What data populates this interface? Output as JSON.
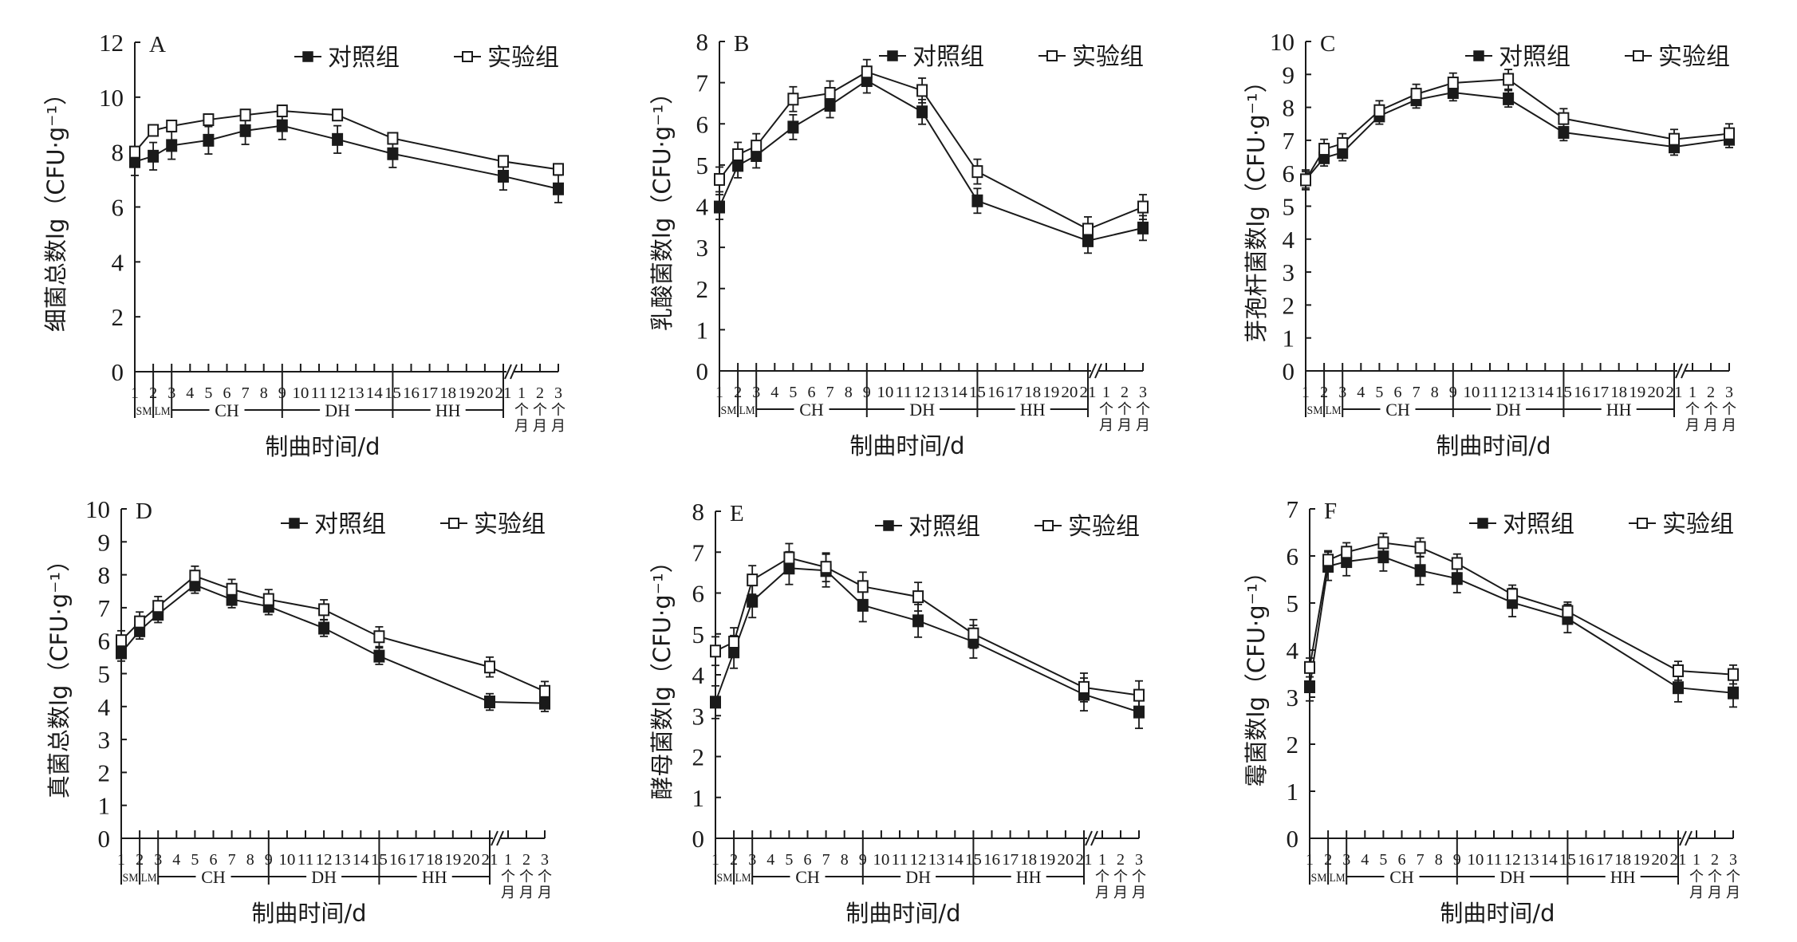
{
  "figure": {
    "legend": {
      "control": "对照组",
      "experiment": "实验组"
    },
    "x_title": "制曲时间/d",
    "x_day_ticks": [
      "1",
      "2",
      "3",
      "4",
      "5",
      "6",
      "7",
      "8",
      "9",
      "10",
      "11",
      "12",
      "13",
      "14",
      "15",
      "16",
      "17",
      "18",
      "19",
      "20",
      "21"
    ],
    "x_month_ticks": [
      {
        "num": "1",
        "unit": [
          "个",
          "月"
        ]
      },
      {
        "num": "2",
        "unit": [
          "个",
          "月"
        ]
      },
      {
        "num": "3",
        "unit": [
          "个",
          "月"
        ]
      }
    ],
    "phases": [
      {
        "label": "SM",
        "from_day": 1,
        "to_day": 2
      },
      {
        "label": "LM",
        "from_day": 2,
        "to_day": 3
      },
      {
        "label": "CH",
        "from_day": 3,
        "to_day": 9
      },
      {
        "label": "DH",
        "from_day": 9,
        "to_day": 15
      },
      {
        "label": "HH",
        "from_day": 15,
        "to_day": 21
      }
    ],
    "series_style": {
      "control": "filled-square",
      "experiment": "open-square"
    },
    "colors": {
      "line": "#1a1a1a",
      "open_fill": "#ffffff"
    }
  },
  "chart_data": [
    {
      "type": "line",
      "panel": "A",
      "ylabel": "细菌总数lg（CFU·g⁻¹）",
      "xlabel": "制曲时间/d",
      "ylim": [
        0,
        12
      ],
      "yticks": [
        0,
        2,
        4,
        6,
        8,
        10,
        12
      ],
      "x": [
        "1",
        "2",
        "3",
        "5",
        "7",
        "9",
        "12",
        "15",
        "21",
        "3个月"
      ],
      "series": [
        {
          "name": "对照组",
          "values": [
            7.65,
            7.85,
            8.24,
            8.43,
            8.78,
            8.96,
            8.46,
            7.94,
            7.12,
            6.66
          ],
          "error": [
            0.5,
            0.5,
            0.5,
            0.5,
            0.5,
            0.5,
            0.5,
            0.5,
            0.5,
            0.5
          ]
        },
        {
          "name": "实验组",
          "values": [
            8.0,
            8.79,
            8.95,
            9.18,
            9.35,
            9.5,
            9.35,
            8.5,
            7.66,
            7.37
          ],
          "error": [
            0.2,
            0.2,
            0.2,
            0.2,
            0.2,
            0.2,
            0.2,
            0.2,
            0.2,
            0.2
          ]
        }
      ]
    },
    {
      "type": "line",
      "panel": "B",
      "ylabel": "乳酸菌数lg（CFU·g⁻¹）",
      "xlabel": "制曲时间/d",
      "ylim": [
        0,
        8
      ],
      "yticks": [
        0,
        1,
        2,
        3,
        4,
        5,
        6,
        7,
        8
      ],
      "x": [
        "1",
        "2",
        "3",
        "5",
        "7",
        "9",
        "12",
        "15",
        "21",
        "3个月"
      ],
      "series": [
        {
          "name": "对照组",
          "values": [
            3.98,
            4.99,
            5.23,
            5.92,
            6.45,
            7.05,
            6.29,
            4.13,
            3.16,
            3.47
          ],
          "error": [
            0.3,
            0.3,
            0.3,
            0.3,
            0.3,
            0.3,
            0.3,
            0.3,
            0.3,
            0.3
          ]
        },
        {
          "name": "实验组",
          "values": [
            4.65,
            5.25,
            5.46,
            6.6,
            6.74,
            7.26,
            6.81,
            4.84,
            3.44,
            3.98
          ],
          "error": [
            0.3,
            0.3,
            0.3,
            0.3,
            0.3,
            0.3,
            0.3,
            0.3,
            0.3,
            0.3
          ]
        }
      ]
    },
    {
      "type": "line",
      "panel": "C",
      "ylabel": "芽孢杆菌数lg（CFU·g⁻¹）",
      "xlabel": "制曲时间/d",
      "ylim": [
        0,
        10
      ],
      "yticks": [
        0,
        1,
        2,
        3,
        4,
        5,
        6,
        7,
        8,
        9,
        10
      ],
      "x": [
        "1",
        "2",
        "3",
        "5",
        "7",
        "9",
        "12",
        "15",
        "21",
        "3个月"
      ],
      "series": [
        {
          "name": "对照组",
          "values": [
            5.8,
            6.47,
            6.63,
            7.74,
            8.23,
            8.45,
            8.26,
            7.24,
            6.8,
            7.03
          ],
          "error": [
            0.25,
            0.25,
            0.25,
            0.25,
            0.25,
            0.25,
            0.25,
            0.25,
            0.25,
            0.25
          ]
        },
        {
          "name": "实验组",
          "values": [
            5.8,
            6.73,
            6.9,
            7.9,
            8.4,
            8.74,
            8.85,
            7.66,
            7.03,
            7.2
          ],
          "error": [
            0.3,
            0.3,
            0.3,
            0.3,
            0.3,
            0.3,
            0.3,
            0.3,
            0.3,
            0.3
          ]
        }
      ]
    },
    {
      "type": "line",
      "panel": "D",
      "ylabel": "真菌总数lg（CFU·g⁻¹）",
      "xlabel": "制曲时间/d",
      "ylim": [
        0,
        10
      ],
      "yticks": [
        0,
        1,
        2,
        3,
        4,
        5,
        6,
        7,
        8,
        9,
        10
      ],
      "x": [
        "1",
        "2",
        "3",
        "5",
        "7",
        "9",
        "12",
        "15",
        "21",
        "3个月"
      ],
      "series": [
        {
          "name": "对照组",
          "values": [
            5.63,
            6.3,
            6.8,
            7.69,
            7.25,
            7.04,
            6.38,
            5.53,
            4.14,
            4.1
          ],
          "error": [
            0.25,
            0.25,
            0.25,
            0.25,
            0.25,
            0.25,
            0.25,
            0.25,
            0.25,
            0.25
          ]
        },
        {
          "name": "实验组",
          "values": [
            6.0,
            6.57,
            7.04,
            7.96,
            7.56,
            7.25,
            6.94,
            6.12,
            5.2,
            4.46
          ],
          "error": [
            0.3,
            0.3,
            0.3,
            0.3,
            0.3,
            0.3,
            0.3,
            0.3,
            0.3,
            0.3
          ]
        }
      ]
    },
    {
      "type": "line",
      "panel": "E",
      "ylabel": "酵母菌数lg（CFU·g⁻¹）",
      "xlabel": "制曲时间/d",
      "ylim": [
        0,
        8
      ],
      "yticks": [
        0,
        1,
        2,
        3,
        4,
        5,
        6,
        7,
        8
      ],
      "x": [
        "1",
        "2",
        "3",
        "5",
        "7",
        "9",
        "12",
        "15",
        "21",
        "3个月"
      ],
      "series": [
        {
          "name": "对照组",
          "values": [
            3.33,
            4.56,
            5.8,
            6.61,
            6.55,
            5.7,
            5.32,
            4.81,
            3.52,
            3.09
          ],
          "error": [
            0.4,
            0.4,
            0.4,
            0.4,
            0.4,
            0.4,
            0.4,
            0.4,
            0.4,
            0.4
          ]
        },
        {
          "name": "实验组",
          "values": [
            4.58,
            4.8,
            6.32,
            6.86,
            6.63,
            6.16,
            5.91,
            5.0,
            3.69,
            3.5
          ],
          "error": [
            0.35,
            0.35,
            0.35,
            0.35,
            0.35,
            0.35,
            0.35,
            0.35,
            0.35,
            0.35
          ]
        }
      ]
    },
    {
      "type": "line",
      "panel": "F",
      "ylabel": "霉菌数lg（CFU·g⁻¹）",
      "xlabel": "制曲时间/d",
      "ylim": [
        0,
        7
      ],
      "yticks": [
        0,
        1,
        2,
        3,
        4,
        5,
        6,
        7
      ],
      "x": [
        "1",
        "2",
        "3",
        "5",
        "7",
        "9",
        "12",
        "15",
        "21",
        "3个月"
      ],
      "series": [
        {
          "name": "对照组",
          "values": [
            3.22,
            5.78,
            5.88,
            5.98,
            5.69,
            5.52,
            5.01,
            4.67,
            3.2,
            3.09
          ],
          "error": [
            0.3,
            0.3,
            0.3,
            0.3,
            0.3,
            0.3,
            0.3,
            0.3,
            0.3,
            0.3
          ]
        },
        {
          "name": "实验组",
          "values": [
            3.63,
            5.91,
            6.08,
            6.28,
            6.18,
            5.84,
            5.18,
            4.82,
            3.56,
            3.48
          ],
          "error": [
            0.2,
            0.2,
            0.2,
            0.2,
            0.2,
            0.2,
            0.2,
            0.2,
            0.2,
            0.2
          ]
        }
      ]
    }
  ]
}
